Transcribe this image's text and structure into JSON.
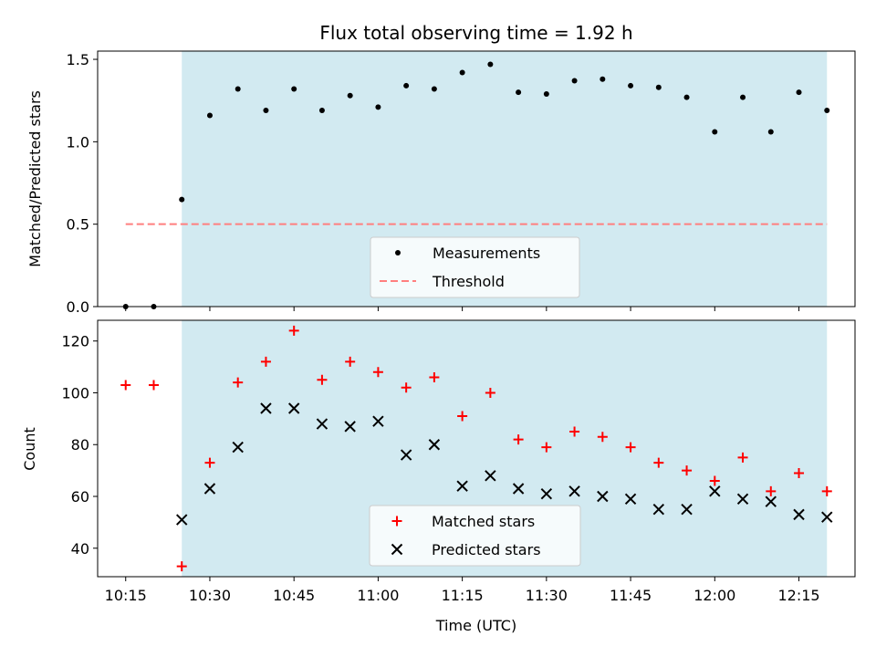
{
  "chart_data": [
    {
      "type": "scatter",
      "title": "Flux total observing time = 1.92 h",
      "xlabel": "",
      "ylabel": "Matched/Predicted stars",
      "ylim": [
        0,
        1.55
      ],
      "yticks": [
        0.0,
        0.5,
        1.0,
        1.5
      ],
      "ytick_labels": [
        "0.0",
        "0.5",
        "1.0",
        "1.5"
      ],
      "xlim": [
        "10:10",
        "12:25"
      ],
      "shaded_span": [
        "10:25",
        "12:20"
      ],
      "shade_color": "#add8e6",
      "grid": false,
      "legend_position": "lower center",
      "series": [
        {
          "name": "Measurements",
          "marker": "dot",
          "color": "#000000",
          "x": [
            "10:15",
            "10:20",
            "10:25",
            "10:30",
            "10:35",
            "10:40",
            "10:45",
            "10:50",
            "10:55",
            "11:00",
            "11:05",
            "11:10",
            "11:15",
            "11:20",
            "11:25",
            "11:30",
            "11:35",
            "11:40",
            "11:45",
            "11:50",
            "11:55",
            "12:00",
            "12:05",
            "12:10",
            "12:15",
            "12:20"
          ],
          "values": [
            0.0,
            0.0,
            0.65,
            1.16,
            1.32,
            1.19,
            1.32,
            1.19,
            1.28,
            1.21,
            1.34,
            1.32,
            1.42,
            1.47,
            1.3,
            1.29,
            1.37,
            1.38,
            1.34,
            1.33,
            1.27,
            1.06,
            1.27,
            1.06,
            1.3,
            1.19
          ]
        },
        {
          "name": "Threshold",
          "marker": "dashed-line",
          "color": "#ff7f7f",
          "x": [
            "10:15",
            "12:20"
          ],
          "values": [
            0.5,
            0.5
          ]
        }
      ]
    },
    {
      "type": "scatter",
      "title": "",
      "xlabel": "Time (UTC)",
      "ylabel": "Count",
      "ylim": [
        29,
        128
      ],
      "yticks": [
        40,
        60,
        80,
        100,
        120
      ],
      "ytick_labels": [
        "40",
        "60",
        "80",
        "100",
        "120"
      ],
      "xlim": [
        "10:10",
        "12:25"
      ],
      "xticks": [
        "10:15",
        "10:30",
        "10:45",
        "11:00",
        "11:15",
        "11:30",
        "11:45",
        "12:00",
        "12:15"
      ],
      "xtick_labels": [
        "10:15",
        "10:30",
        "10:45",
        "11:00",
        "11:15",
        "11:30",
        "11:45",
        "12:00",
        "12:15"
      ],
      "shaded_span": [
        "10:25",
        "12:20"
      ],
      "shade_color": "#add8e6",
      "grid": false,
      "legend_position": "lower center",
      "series": [
        {
          "name": "Matched stars",
          "marker": "plus",
          "color": "#ff0000",
          "x": [
            "10:15",
            "10:20",
            "10:25",
            "10:30",
            "10:35",
            "10:40",
            "10:45",
            "10:50",
            "10:55",
            "11:00",
            "11:05",
            "11:10",
            "11:15",
            "11:20",
            "11:25",
            "11:30",
            "11:35",
            "11:40",
            "11:45",
            "11:50",
            "11:55",
            "12:00",
            "12:05",
            "12:10",
            "12:15",
            "12:20"
          ],
          "values": [
            103,
            103,
            33,
            73,
            104,
            112,
            124,
            105,
            112,
            108,
            102,
            106,
            91,
            100,
            82,
            79,
            85,
            83,
            79,
            73,
            70,
            66,
            75,
            62,
            69,
            62
          ]
        },
        {
          "name": "Predicted stars",
          "marker": "x",
          "color": "#000000",
          "x": [
            "10:25",
            "10:30",
            "10:35",
            "10:40",
            "10:45",
            "10:50",
            "10:55",
            "11:00",
            "11:05",
            "11:10",
            "11:15",
            "11:20",
            "11:25",
            "11:30",
            "11:35",
            "11:40",
            "11:45",
            "11:50",
            "11:55",
            "12:00",
            "12:05",
            "12:10",
            "12:15",
            "12:20"
          ],
          "values": [
            51,
            63,
            79,
            94,
            94,
            88,
            87,
            89,
            76,
            80,
            64,
            68,
            63,
            61,
            62,
            60,
            59,
            55,
            55,
            62,
            59,
            58,
            53,
            52
          ]
        }
      ]
    }
  ]
}
